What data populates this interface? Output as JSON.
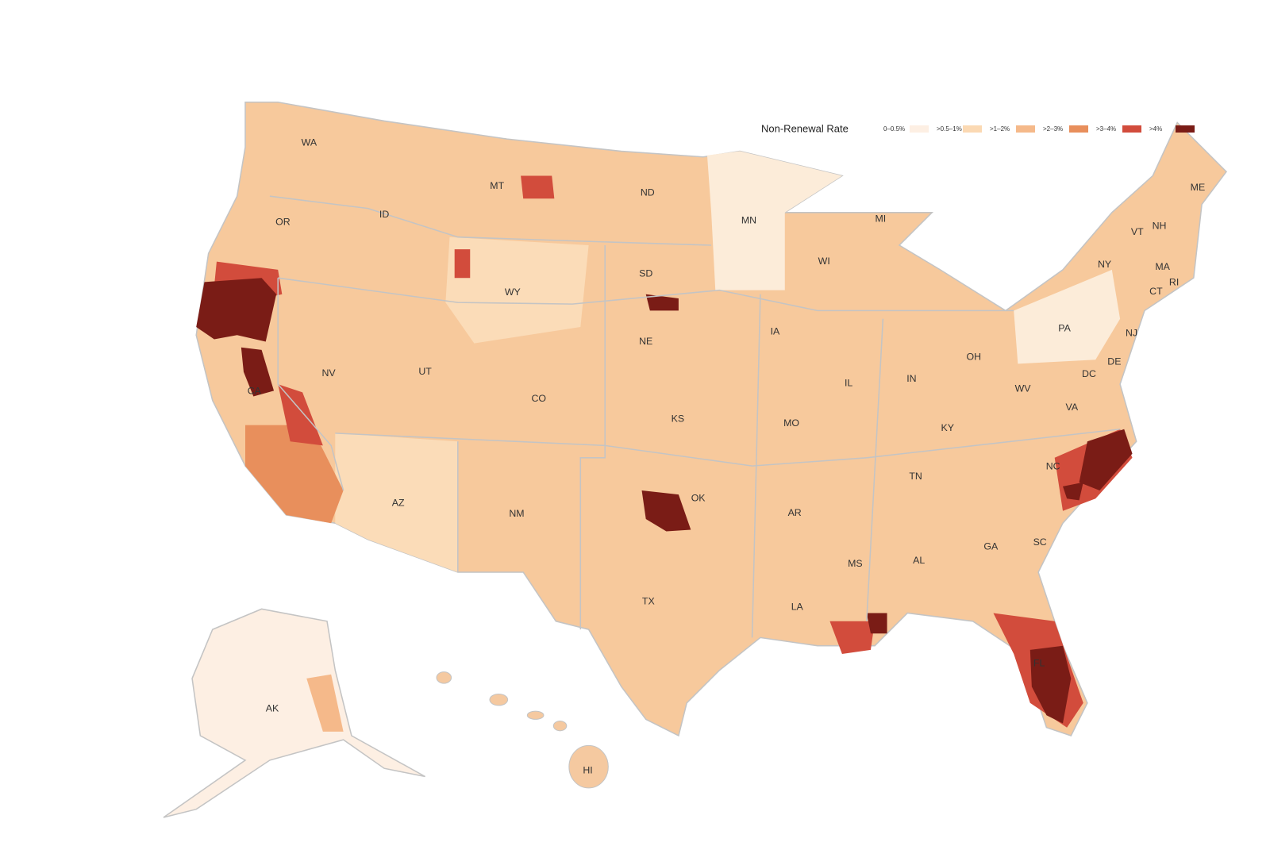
{
  "legend": {
    "title": "Non-Renewal Rate",
    "items": [
      {
        "label": "0–0.5%",
        "color": "#fdefe3"
      },
      {
        "label": ">0.5–1%",
        "color": "#fbd9b3"
      },
      {
        "label": ">1–2%",
        "color": "#f5b98a"
      },
      {
        "label": ">2–3%",
        "color": "#e88f5c"
      },
      {
        "label": ">3–4%",
        "color": "#d24c3c"
      },
      {
        "label": ">4%",
        "color": "#7a1c16"
      }
    ]
  },
  "states": [
    "WA",
    "MT",
    "ND",
    "MN",
    "ME",
    "OR",
    "ID",
    "MI",
    "NH",
    "VT",
    "NY",
    "WI",
    "MA",
    "SD",
    "WY",
    "CT",
    "RI",
    "IA",
    "NE",
    "PA",
    "NJ",
    "OH",
    "IN",
    "DE",
    "NV",
    "UT",
    "IL",
    "DC",
    "WV",
    "CA",
    "CO",
    "VA",
    "KS",
    "MO",
    "KY",
    "TN",
    "NC",
    "OK",
    "AR",
    "AZ",
    "NM",
    "SC",
    "GA",
    "AL",
    "MS",
    "TX",
    "LA",
    "FL",
    "AK",
    "HI"
  ]
}
